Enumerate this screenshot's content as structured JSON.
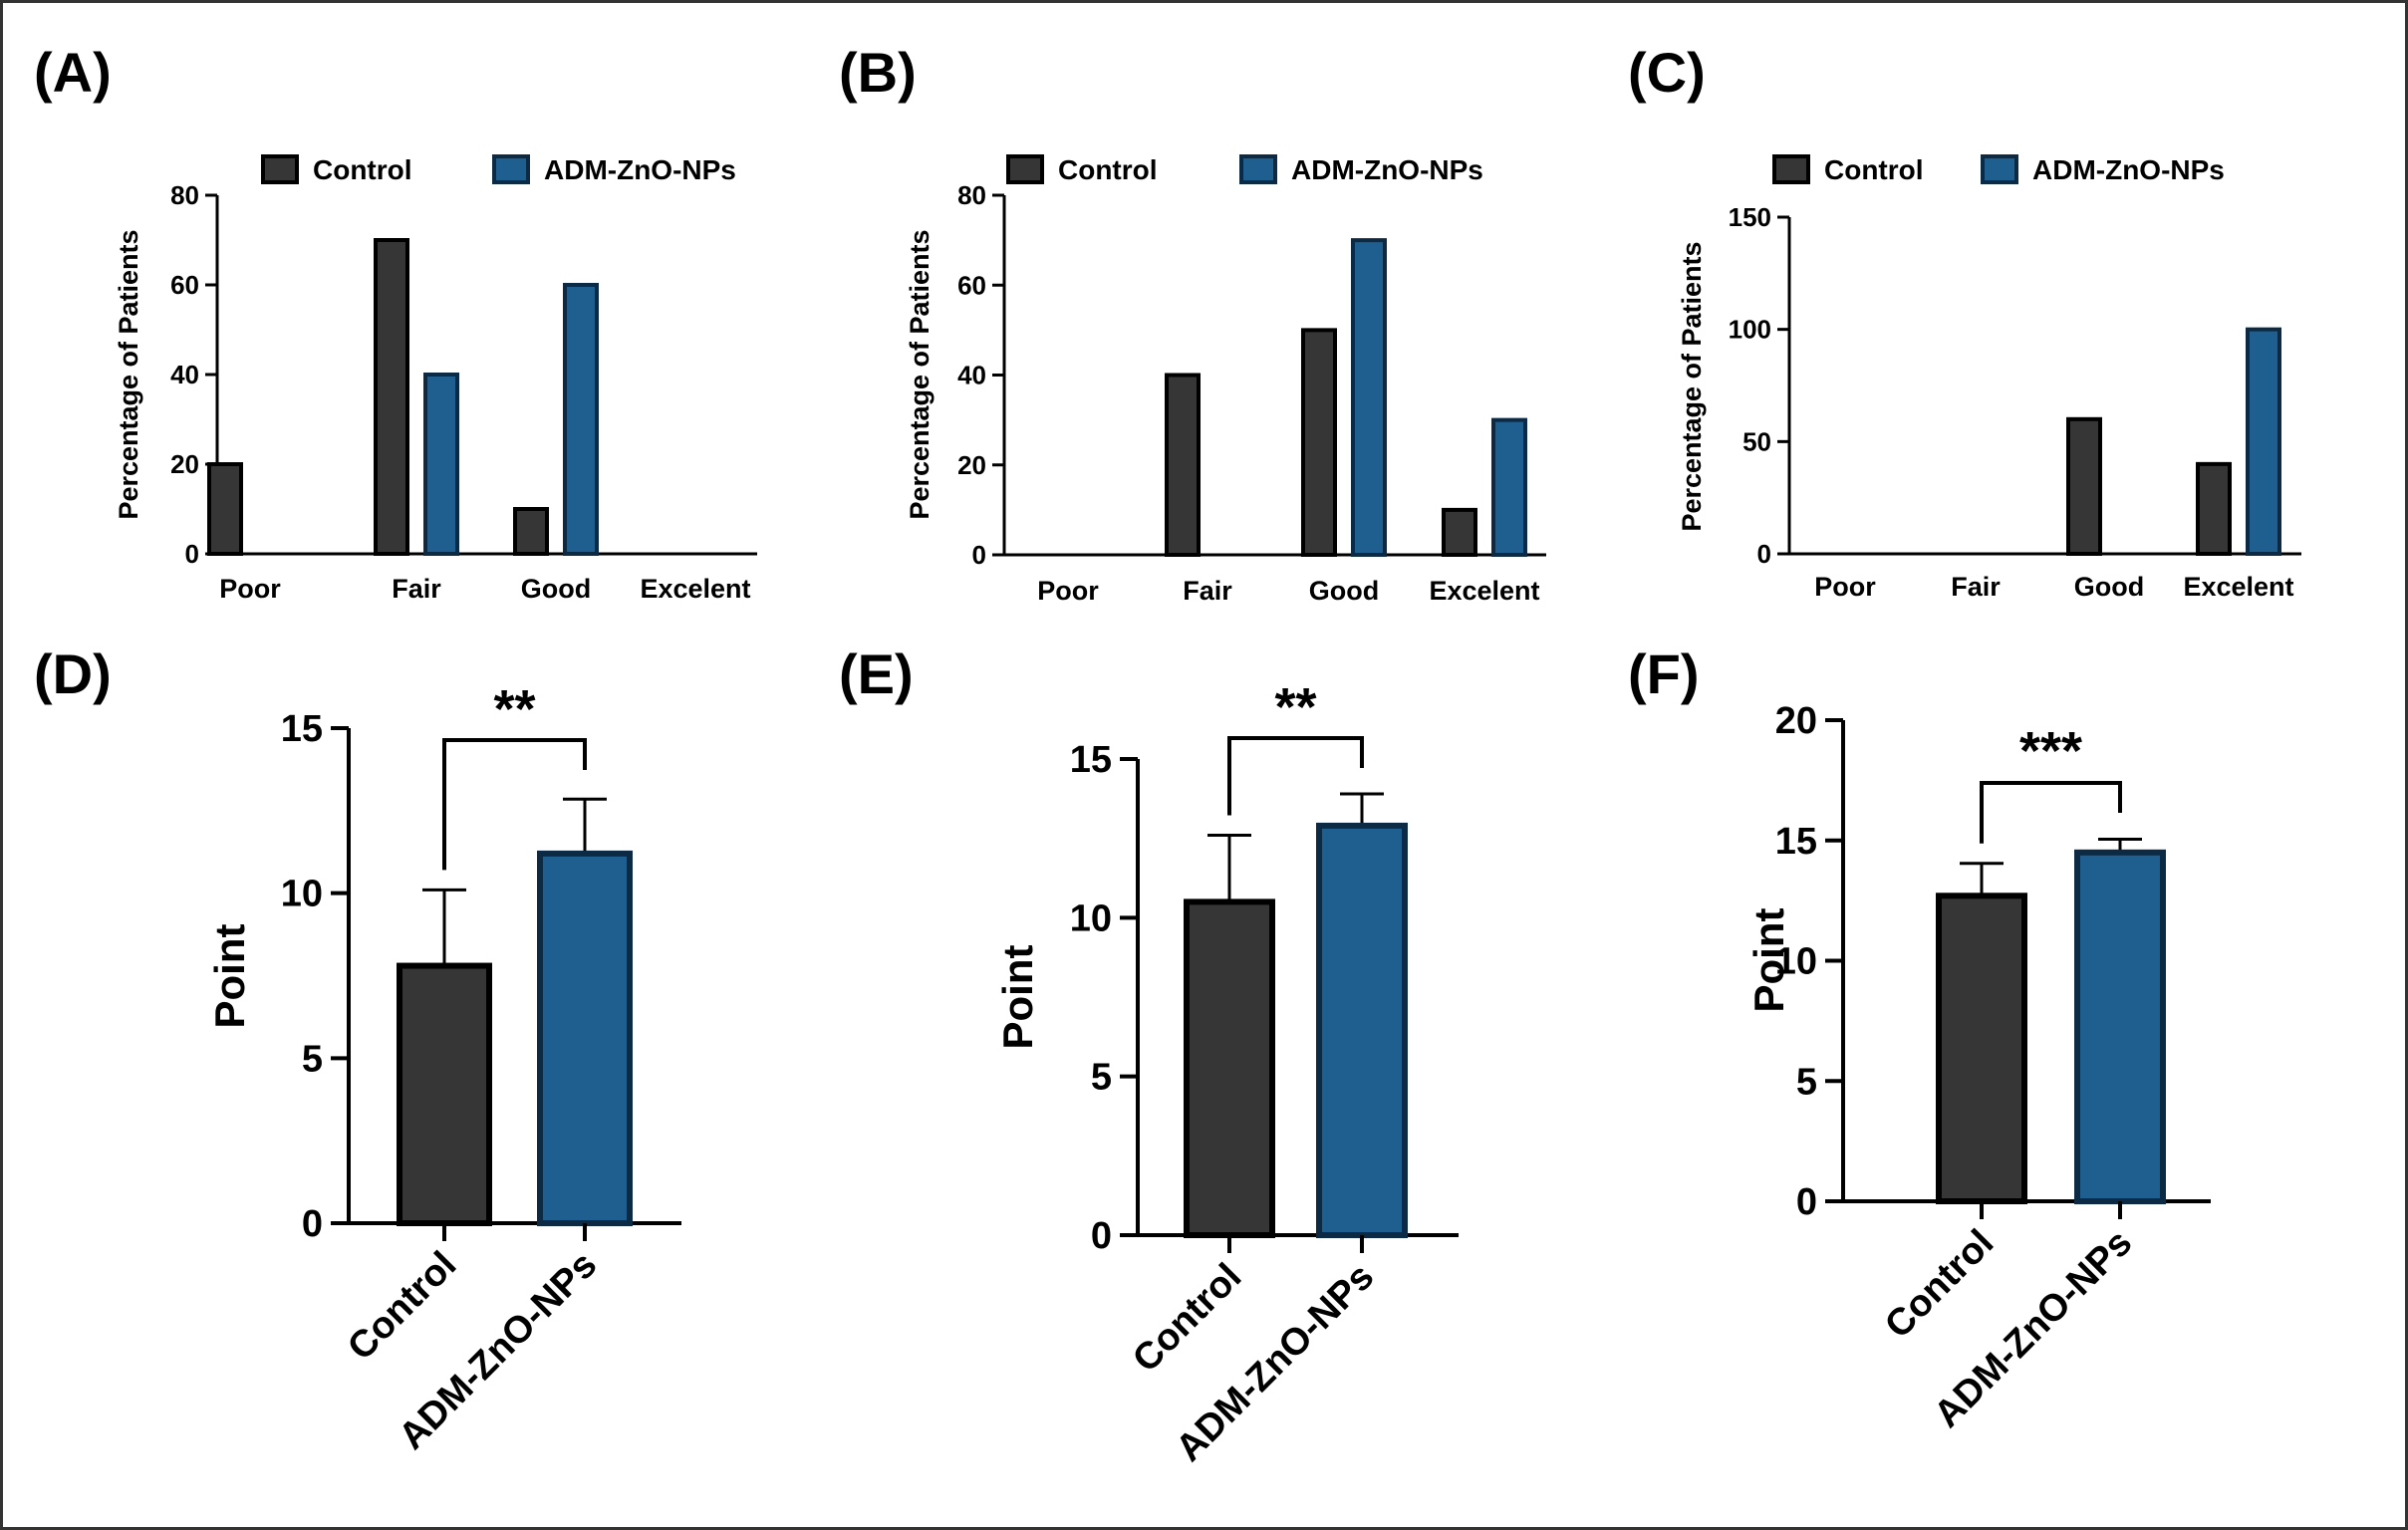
{
  "colors": {
    "control": "#363636",
    "adm": "#1f5f8f",
    "adm_stroke": "#0d2a44",
    "control_stroke": "#000000",
    "axis": "#000000",
    "frame": "#333333"
  },
  "legend": {
    "labels": [
      "Control",
      "ADM-ZnO-NPs"
    ]
  },
  "chart_data": [
    {
      "panel": "(A)",
      "type": "bar",
      "ylabel": "Percentage of Patients",
      "categories": [
        "Poor",
        "Fair",
        "Good",
        "Excelent"
      ],
      "yticks": [
        0,
        20,
        40,
        60,
        80
      ],
      "ylim": [
        0,
        80
      ],
      "series": [
        {
          "name": "Control",
          "values": [
            20,
            70,
            10,
            0
          ]
        },
        {
          "name": "ADM-ZnO-NPs",
          "values": [
            0,
            40,
            60,
            0
          ]
        }
      ],
      "legend": "top"
    },
    {
      "panel": "(B)",
      "type": "bar",
      "ylabel": "Percentage of Patients",
      "categories": [
        "Poor",
        "Fair",
        "Good",
        "Excelent"
      ],
      "yticks": [
        0,
        20,
        40,
        60,
        80
      ],
      "ylim": [
        0,
        80
      ],
      "series": [
        {
          "name": "Control",
          "values": [
            0,
            40,
            50,
            10
          ]
        },
        {
          "name": "ADM-ZnO-NPs",
          "values": [
            0,
            0,
            70,
            30
          ]
        }
      ],
      "legend": "top"
    },
    {
      "panel": "(C)",
      "type": "bar",
      "ylabel": "Percentage of Patients",
      "categories": [
        "Poor",
        "Fair",
        "Good",
        "Excelent"
      ],
      "yticks": [
        0,
        50,
        100,
        150
      ],
      "ylim": [
        0,
        150
      ],
      "series": [
        {
          "name": "Control",
          "values": [
            0,
            0,
            60,
            40
          ]
        },
        {
          "name": "ADM-ZnO-NPs",
          "values": [
            0,
            0,
            0,
            100
          ]
        }
      ],
      "legend": "top"
    },
    {
      "panel": "(D)",
      "type": "bar",
      "ylabel": "Point",
      "categories": [
        "Control",
        "ADM-ZnO-NPs"
      ],
      "values": [
        7.8,
        11.2
      ],
      "errors": [
        2.3,
        1.65
      ],
      "yticks": [
        0,
        5,
        10,
        15
      ],
      "ylim": [
        0,
        15
      ],
      "significance": "**"
    },
    {
      "panel": "(E)",
      "type": "bar",
      "ylabel": "Point",
      "categories": [
        "Control",
        "ADM-ZnO-NPs"
      ],
      "values": [
        10.5,
        12.9
      ],
      "errors": [
        2.1,
        1.0
      ],
      "yticks": [
        0,
        5,
        10,
        15
      ],
      "ylim": [
        0,
        15
      ],
      "significance": "**"
    },
    {
      "panel": "(F)",
      "type": "bar",
      "ylabel": "Point",
      "categories": [
        "Control",
        "ADM-ZnO-NPs"
      ],
      "values": [
        12.7,
        14.5
      ],
      "errors": [
        1.35,
        0.55
      ],
      "yticks": [
        0,
        5,
        10,
        15,
        20
      ],
      "ylim": [
        0,
        20
      ],
      "significance": "***"
    }
  ]
}
